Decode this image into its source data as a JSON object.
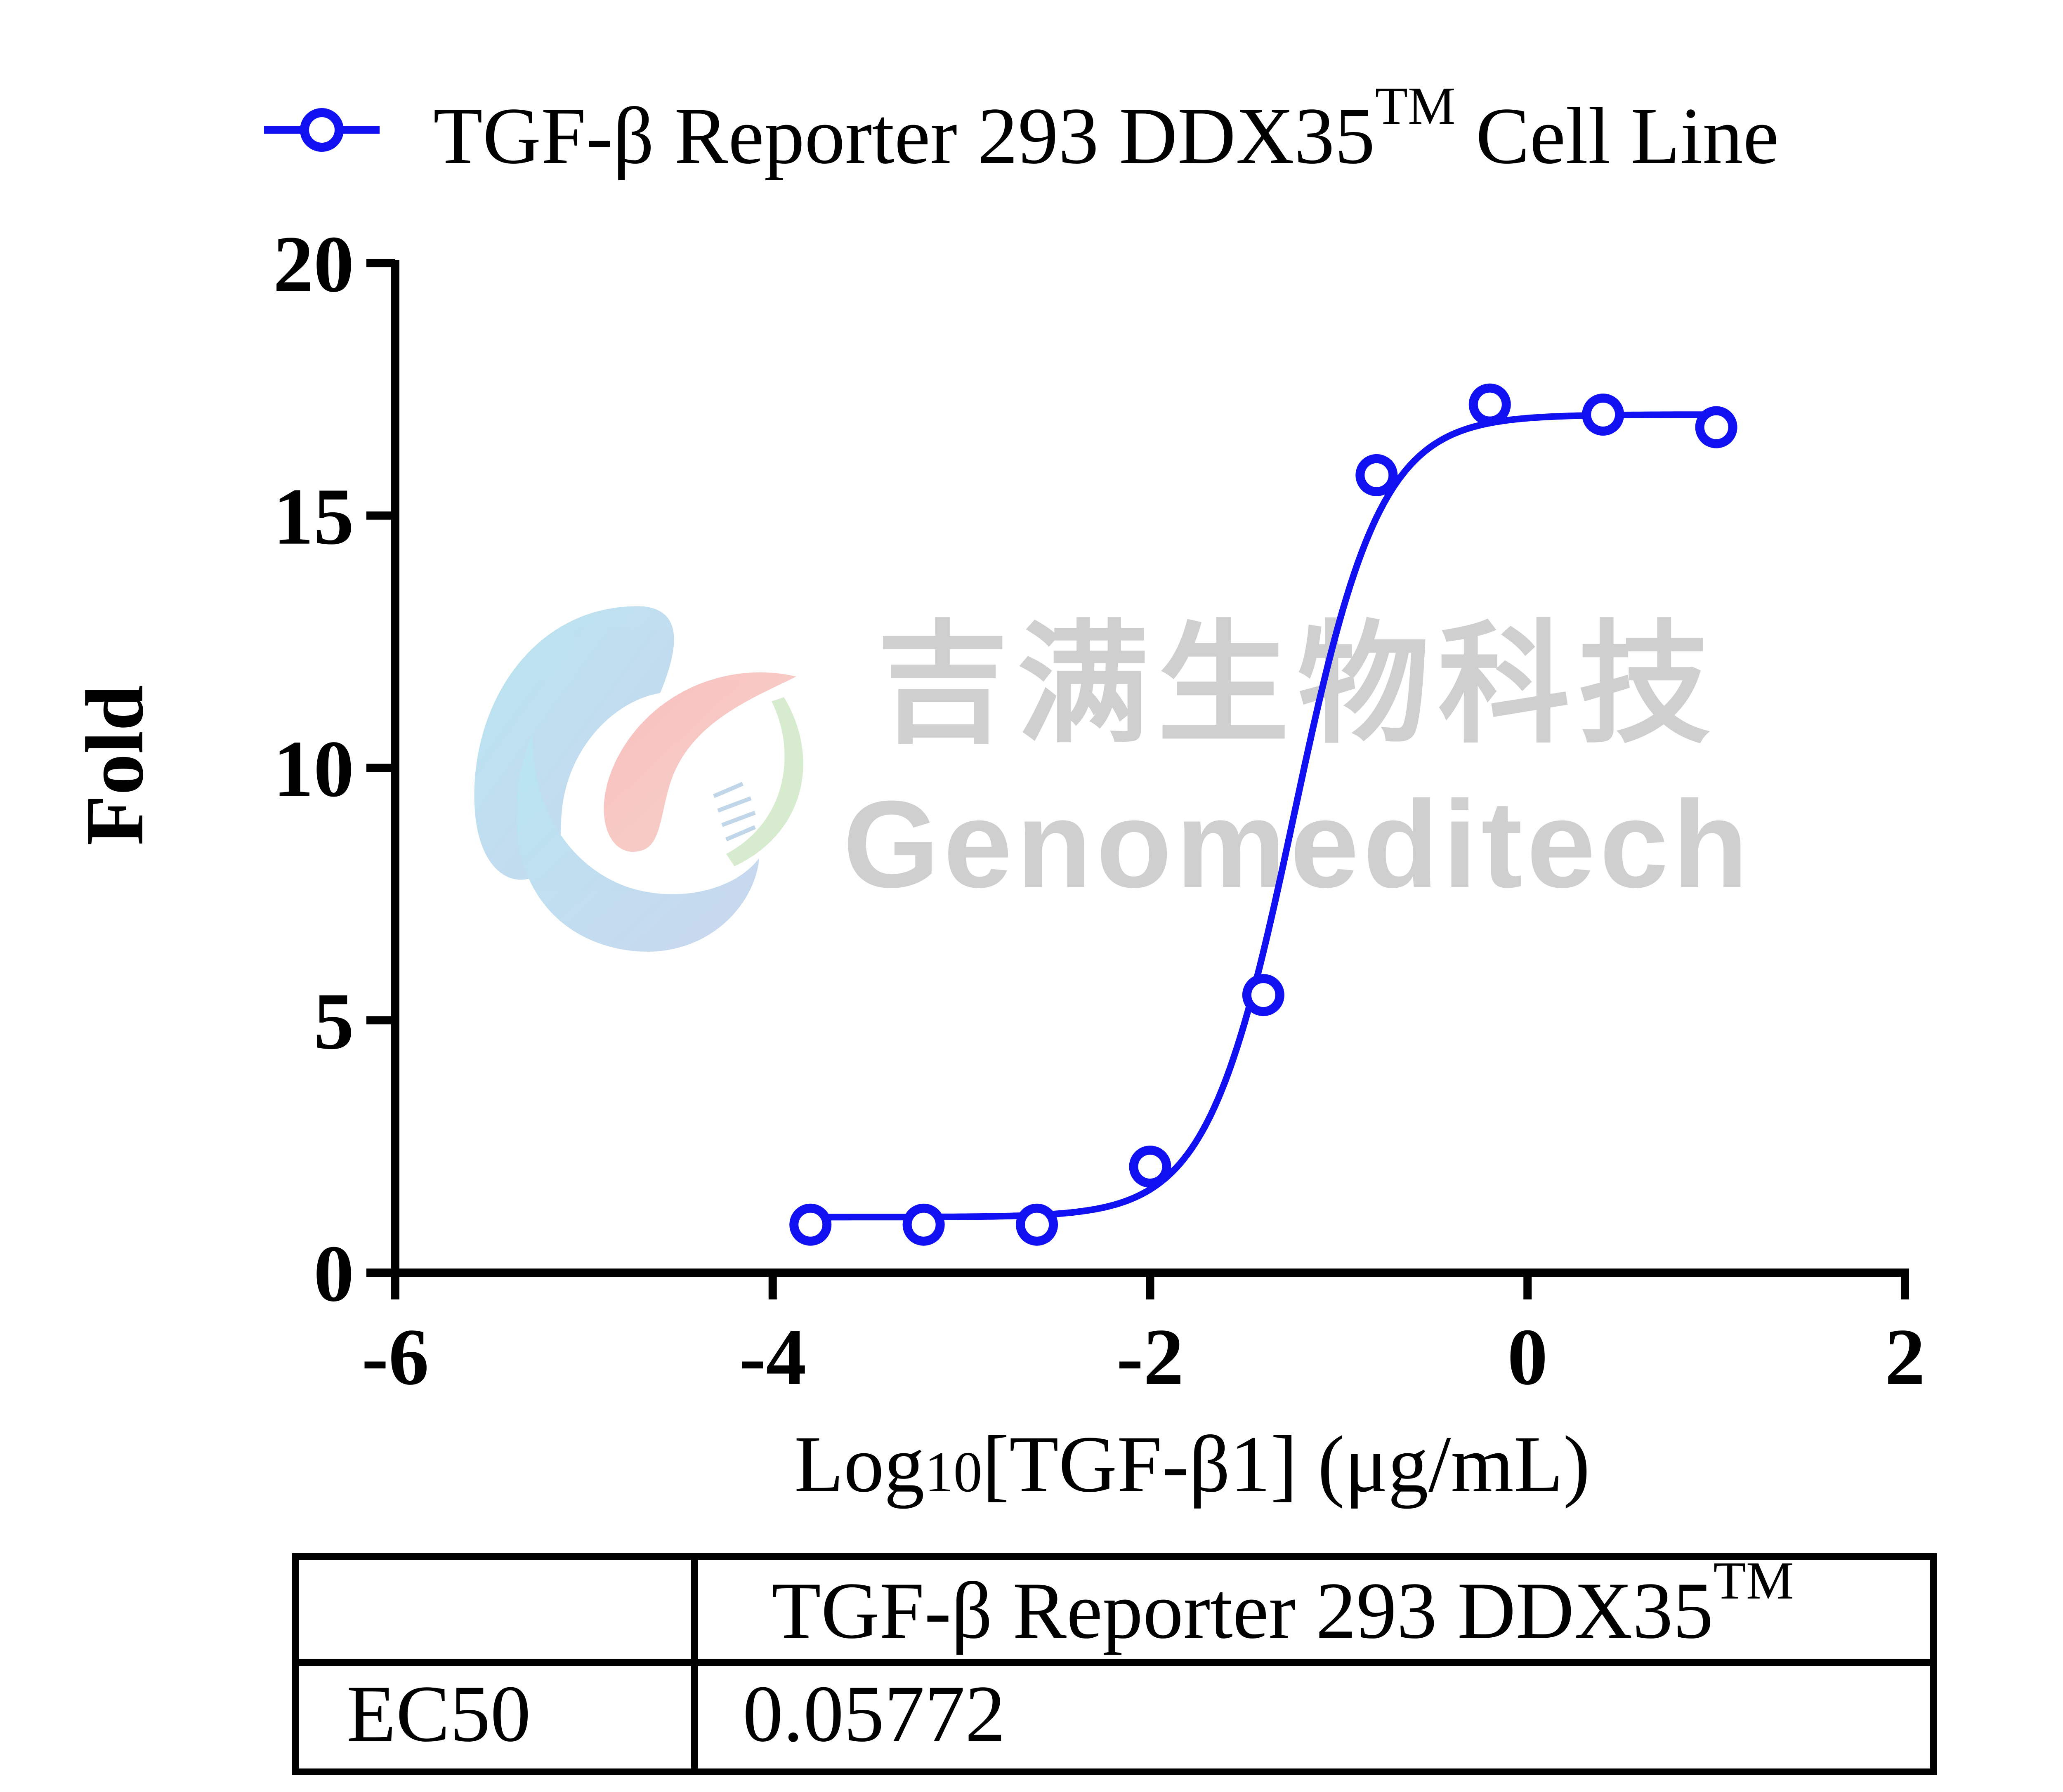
{
  "chart_data": {
    "type": "scatter",
    "legend": {
      "label": "TGF-β Reporter 293 DDX35",
      "superscript": "TM",
      "suffix": " Cell Line",
      "placement": "top"
    },
    "xlabel": {
      "prefix": "Log",
      "subscript": "10",
      "suffix": "[TGF-β1] (μg/mL)"
    },
    "ylabel": "Fold",
    "xlim": [
      -6,
      2
    ],
    "ylim": [
      0,
      20
    ],
    "x_ticks": [
      -6,
      -4,
      -2,
      0,
      2
    ],
    "y_ticks": [
      0,
      5,
      10,
      15,
      20
    ],
    "x_tick_labels": [
      "-6",
      "-4",
      "-2",
      "0",
      "2"
    ],
    "y_tick_labels": [
      "0",
      "5",
      "10",
      "15",
      "20"
    ],
    "series": [
      {
        "name": "TGF-β Reporter 293 DDX35™ Cell Line",
        "color": "#1010f0",
        "x": [
          -3.8,
          -3.2,
          -2.6,
          -2.0,
          -1.4,
          -0.8,
          -0.2,
          0.4,
          1.0
        ],
        "y": [
          0.95,
          0.95,
          0.95,
          2.1,
          5.5,
          15.8,
          17.2,
          17.0,
          16.75
        ]
      }
    ],
    "fit_curve": {
      "model": "4PL",
      "bottom": 1.1,
      "top": 17.0,
      "log_ec50": -1.2386,
      "hill_slope": 1.9,
      "x_range": [
        -3.8,
        1.0
      ]
    },
    "grid": false
  },
  "watermark": {
    "chinese": "吉满生物科技",
    "latin": "Genomeditech"
  },
  "table": {
    "header": [
      "",
      "TGF-β Reporter 293 DDX35"
    ],
    "header_superscript": "TM",
    "rows": [
      [
        "EC50",
        "0.05772"
      ]
    ]
  }
}
